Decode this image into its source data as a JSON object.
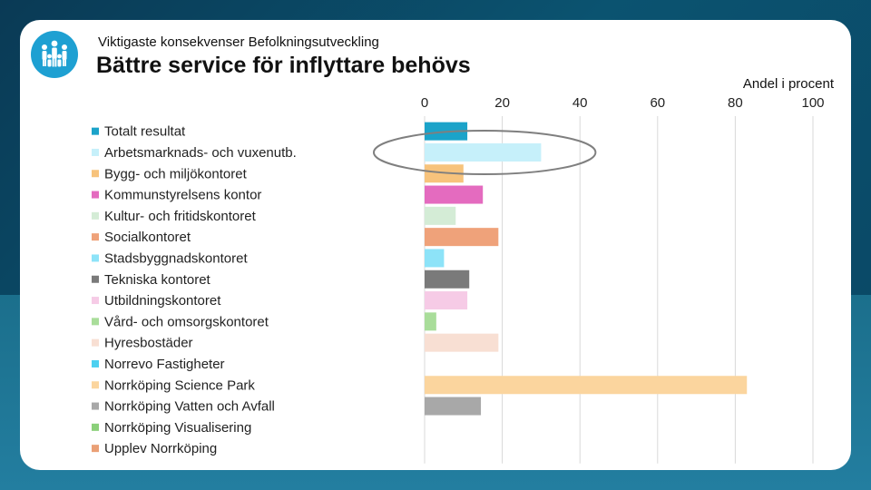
{
  "header": {
    "subtitle": "Viktigaste konsekvenser Befolkningsutveckling",
    "title": "Bättre service för inflyttare behövs"
  },
  "logo": {
    "icon": "people-group-icon",
    "color": "#1ea0d2"
  },
  "chart_data": {
    "type": "bar",
    "orientation": "horizontal",
    "title": "Bättre service för inflyttare behövs",
    "xlabel": "Andel i procent",
    "ylabel": "",
    "xlim": [
      0,
      100
    ],
    "ticks": [
      0,
      20,
      40,
      60,
      80,
      100
    ],
    "grid": true,
    "legend_position": "left",
    "categories": [
      "Totalt resultat",
      "Arbetsmarknads- och vuxenutb.",
      "Bygg- och miljökontoret",
      "Kommunstyrelsens kontor",
      "Kultur- och fritidskontoret",
      "Socialkontoret",
      "Stadsbyggnadskontoret",
      "Tekniska kontoret",
      "Utbildningskontoret",
      "Vård- och omsorgskontoret",
      "Hyresbostäder",
      "Norrevo Fastigheter",
      "Norrköping Science Park",
      "Norrköping Vatten och Avfall",
      "Norrköping Visualisering",
      "Upplev Norrköping"
    ],
    "values": [
      11,
      30,
      10,
      15,
      8,
      19,
      5,
      11.5,
      11,
      3,
      19,
      0,
      83,
      14.5,
      0,
      0
    ],
    "colors": [
      "#1ba3c9",
      "#c6f0fa",
      "#f7c37c",
      "#e46bbf",
      "#d4ecd6",
      "#efa27a",
      "#8de3f8",
      "#7a7a7a",
      "#f6cbe6",
      "#a9dd9a",
      "#f8dfd3",
      "#4cd0f0",
      "#fbd59e",
      "#a8a8a8",
      "#8bd07a",
      "#eaa076"
    ],
    "highlighted_category": "Arbetsmarknads- och vuxenutb."
  }
}
